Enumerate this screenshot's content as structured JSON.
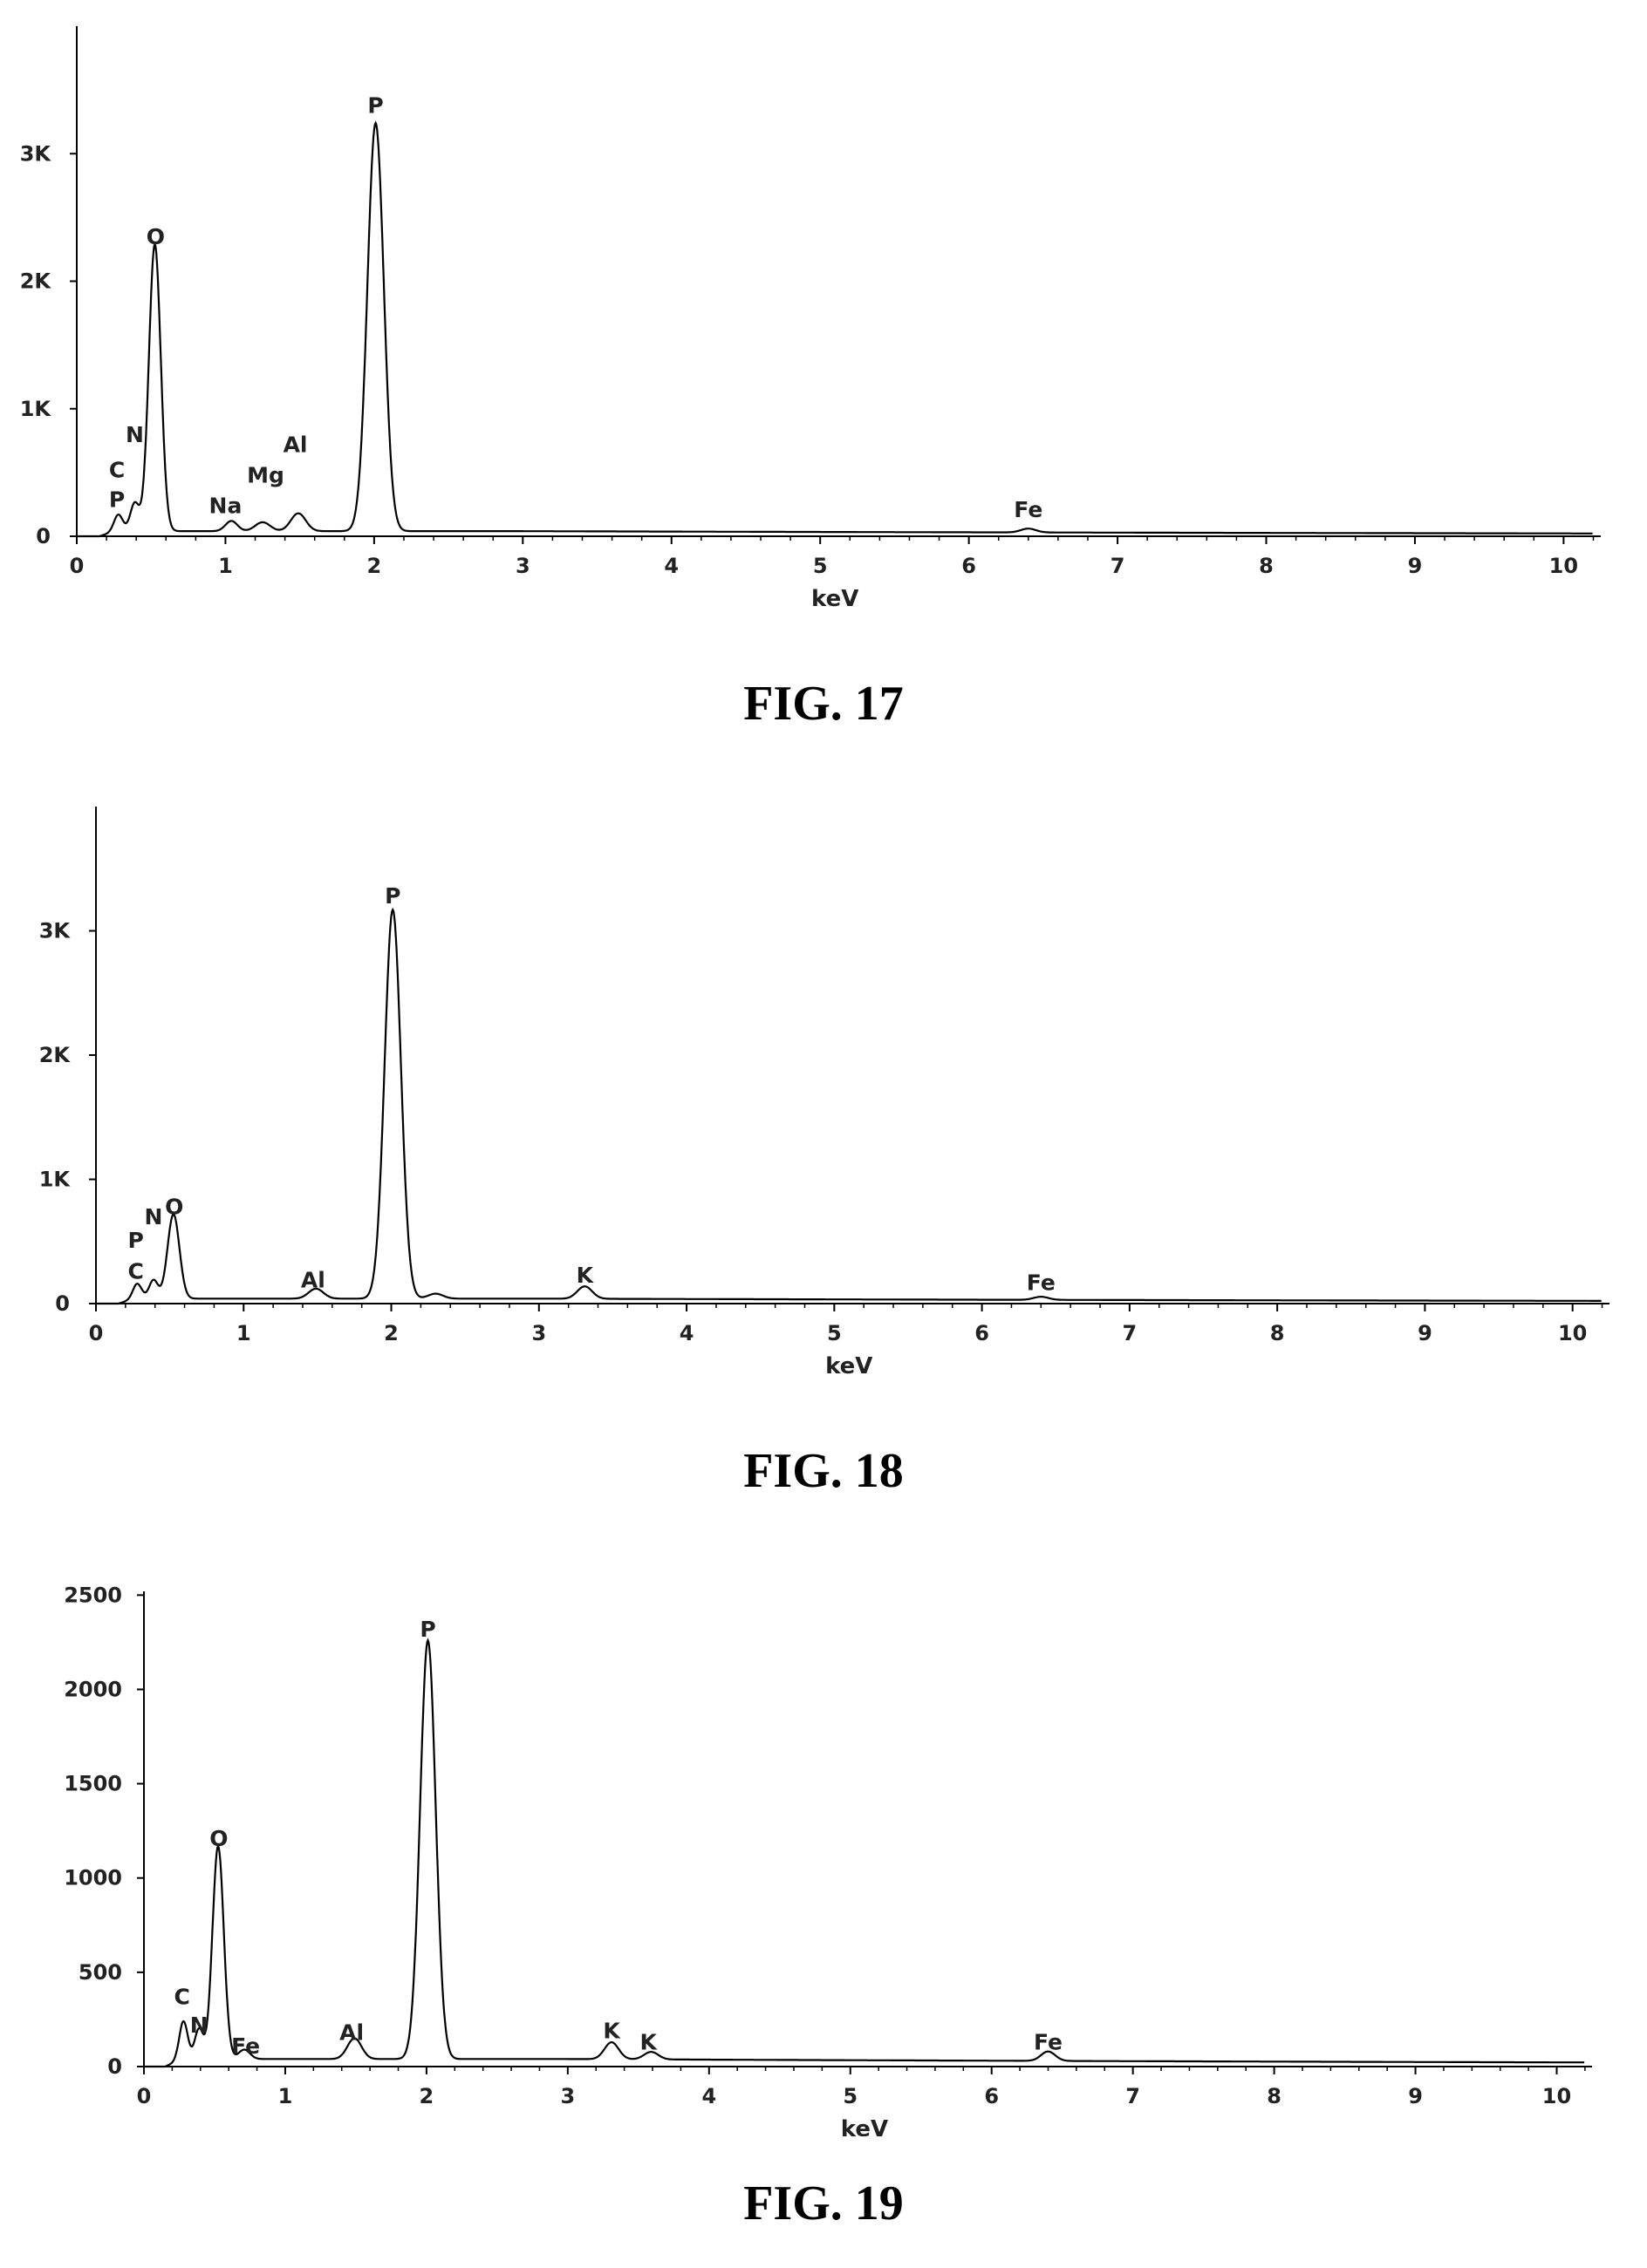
{
  "chart_data": [
    {
      "type": "line",
      "figure": "FIG. 17",
      "xlabel": "keV",
      "xlim": [
        0,
        10.25
      ],
      "ylim": [
        0,
        4000
      ],
      "x_ticks": [
        0,
        1,
        2,
        3,
        4,
        5,
        6,
        7,
        8,
        9,
        10
      ],
      "y_ticks": [
        {
          "value": 0,
          "label": "0"
        },
        {
          "value": 1000,
          "label": "1K"
        },
        {
          "value": 2000,
          "label": "2K"
        },
        {
          "value": 3000,
          "label": "3K"
        }
      ],
      "baseline": 40,
      "peaks": [
        {
          "x": 0.28,
          "y": 130,
          "w": 0.03
        },
        {
          "x": 0.39,
          "y": 220,
          "w": 0.03
        },
        {
          "x": 0.525,
          "y": 2250,
          "w": 0.04
        },
        {
          "x": 1.04,
          "y": 80,
          "w": 0.04
        },
        {
          "x": 1.25,
          "y": 70,
          "w": 0.05
        },
        {
          "x": 1.49,
          "y": 140,
          "w": 0.05
        },
        {
          "x": 2.01,
          "y": 3200,
          "w": 0.055
        },
        {
          "x": 6.4,
          "y": 30,
          "w": 0.05
        }
      ],
      "labels": [
        {
          "text": "C",
          "x": 0.27,
          "y": 460
        },
        {
          "text": "P",
          "x": 0.27,
          "y": 230
        },
        {
          "text": "N",
          "x": 0.39,
          "y": 740
        },
        {
          "text": "O",
          "x": 0.53,
          "y": 2290
        },
        {
          "text": "Na",
          "x": 1.0,
          "y": 180
        },
        {
          "text": "Mg",
          "x": 1.27,
          "y": 420
        },
        {
          "text": "Al",
          "x": 1.47,
          "y": 660
        },
        {
          "text": "P",
          "x": 2.01,
          "y": 3320
        },
        {
          "text": "Fe",
          "x": 6.4,
          "y": 150
        }
      ]
    },
    {
      "type": "line",
      "figure": "FIG. 18",
      "xlabel": "keV",
      "xlim": [
        0,
        10.25
      ],
      "ylim": [
        0,
        4000
      ],
      "x_ticks": [
        0,
        1,
        2,
        3,
        4,
        5,
        6,
        7,
        8,
        9,
        10
      ],
      "y_ticks": [
        {
          "value": 0,
          "label": "0"
        },
        {
          "value": 1000,
          "label": "1K"
        },
        {
          "value": 2000,
          "label": "2K"
        },
        {
          "value": 3000,
          "label": "3K"
        }
      ],
      "baseline": 40,
      "peaks": [
        {
          "x": 0.28,
          "y": 120,
          "w": 0.03
        },
        {
          "x": 0.39,
          "y": 150,
          "w": 0.03
        },
        {
          "x": 0.525,
          "y": 680,
          "w": 0.04
        },
        {
          "x": 1.49,
          "y": 80,
          "w": 0.05
        },
        {
          "x": 2.01,
          "y": 3130,
          "w": 0.055
        },
        {
          "x": 2.3,
          "y": 40,
          "w": 0.05
        },
        {
          "x": 3.31,
          "y": 100,
          "w": 0.05
        },
        {
          "x": 6.4,
          "y": 25,
          "w": 0.05
        }
      ],
      "labels": [
        {
          "text": "P",
          "x": 0.27,
          "y": 450
        },
        {
          "text": "C",
          "x": 0.27,
          "y": 200
        },
        {
          "text": "N",
          "x": 0.39,
          "y": 640
        },
        {
          "text": "O",
          "x": 0.53,
          "y": 720
        },
        {
          "text": "Al",
          "x": 1.47,
          "y": 130
        },
        {
          "text": "P",
          "x": 2.01,
          "y": 3220
        },
        {
          "text": "K",
          "x": 3.31,
          "y": 170
        },
        {
          "text": "Fe",
          "x": 6.4,
          "y": 110
        }
      ]
    },
    {
      "type": "line",
      "figure": "FIG. 19",
      "xlabel": "keV",
      "xlim": [
        0,
        10.25
      ],
      "ylim": [
        0,
        2520
      ],
      "x_ticks": [
        0,
        1,
        2,
        3,
        4,
        5,
        6,
        7,
        8,
        9,
        10
      ],
      "y_ticks": [
        {
          "value": 0,
          "label": "0"
        },
        {
          "value": 500,
          "label": "500"
        },
        {
          "value": 1000,
          "label": "1000"
        },
        {
          "value": 1500,
          "label": "1500"
        },
        {
          "value": 2000,
          "label": "2000"
        },
        {
          "value": 2500,
          "label": "2500"
        }
      ],
      "baseline": 40,
      "peaks": [
        {
          "x": 0.28,
          "y": 200,
          "w": 0.03
        },
        {
          "x": 0.39,
          "y": 160,
          "w": 0.03
        },
        {
          "x": 0.525,
          "y": 1130,
          "w": 0.04
        },
        {
          "x": 0.71,
          "y": 50,
          "w": 0.04
        },
        {
          "x": 1.49,
          "y": 110,
          "w": 0.05
        },
        {
          "x": 2.01,
          "y": 2220,
          "w": 0.055
        },
        {
          "x": 3.31,
          "y": 90,
          "w": 0.05
        },
        {
          "x": 3.59,
          "y": 40,
          "w": 0.05
        },
        {
          "x": 6.4,
          "y": 50,
          "w": 0.05
        }
      ],
      "labels": [
        {
          "text": "C",
          "x": 0.27,
          "y": 330
        },
        {
          "text": "N",
          "x": 0.39,
          "y": 180
        },
        {
          "text": "O",
          "x": 0.53,
          "y": 1170
        },
        {
          "text": "Fe",
          "x": 0.72,
          "y": 70
        },
        {
          "text": "Al",
          "x": 1.47,
          "y": 140
        },
        {
          "text": "P",
          "x": 2.01,
          "y": 2280
        },
        {
          "text": "K",
          "x": 3.31,
          "y": 150
        },
        {
          "text": "K",
          "x": 3.57,
          "y": 90
        },
        {
          "text": "Fe",
          "x": 6.4,
          "y": 90
        }
      ]
    }
  ],
  "captions": {
    "fig17": "FIG. 17",
    "fig18": "FIG. 18",
    "fig19": "FIG. 19"
  }
}
